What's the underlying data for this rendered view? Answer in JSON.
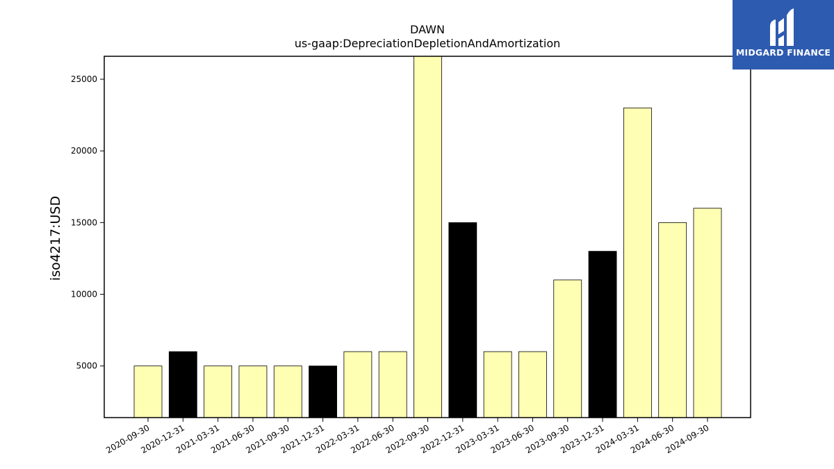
{
  "brand": {
    "name": "MIDGARD FINANCE",
    "logo_icon": "midgard-finance-logo-icon",
    "background": "#2d5bb0"
  },
  "chart_data": {
    "type": "bar",
    "title": "DAWN",
    "subtitle": "us-gaap:DepreciationDepletionAndAmortization",
    "xlabel": "",
    "ylabel": "iso4217:USD",
    "ylim": [
      1400,
      26600
    ],
    "yticks": [
      5000,
      10000,
      15000,
      20000,
      25000
    ],
    "grid": false,
    "categories": [
      "2020-09-30",
      "2020-12-31",
      "2021-03-31",
      "2021-06-30",
      "2021-09-30",
      "2021-12-31",
      "2022-03-31",
      "2022-06-30",
      "2022-09-30",
      "2022-12-31",
      "2023-03-31",
      "2023-06-30",
      "2023-09-30",
      "2023-12-31",
      "2024-03-31",
      "2024-06-30",
      "2024-09-30"
    ],
    "values": [
      5000,
      6000,
      5000,
      5000,
      5000,
      5000,
      6000,
      6000,
      27000,
      15000,
      6000,
      6000,
      11000,
      13000,
      23000,
      15000,
      16000
    ],
    "bar_colors": [
      "#ffffb3",
      "#000000",
      "#ffffb3",
      "#ffffb3",
      "#ffffb3",
      "#000000",
      "#ffffb3",
      "#ffffb3",
      "#ffffb3",
      "#000000",
      "#ffffb3",
      "#ffffb3",
      "#ffffb3",
      "#000000",
      "#ffffb3",
      "#ffffb3",
      "#ffffb3"
    ]
  }
}
